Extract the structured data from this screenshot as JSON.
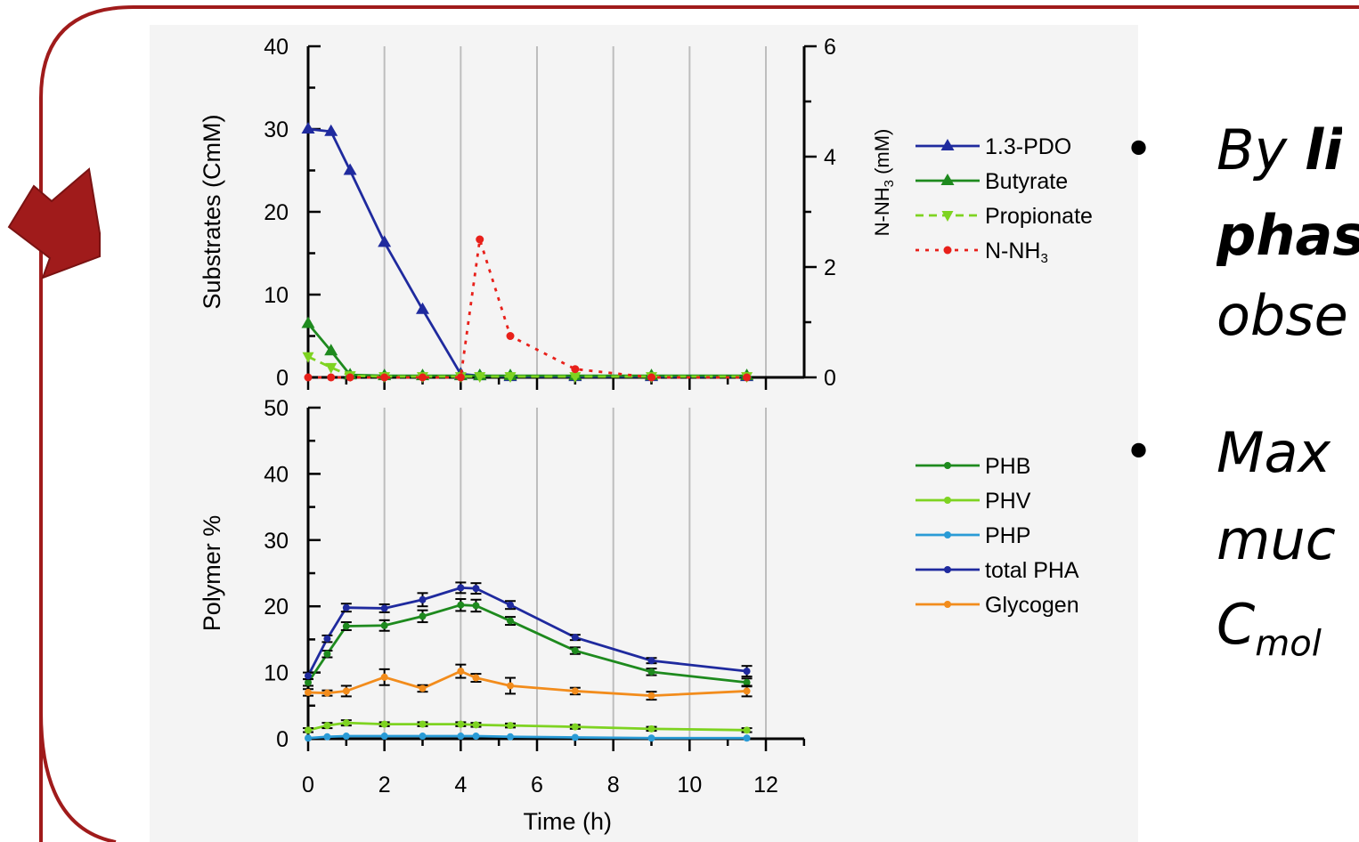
{
  "colors": {
    "frame": "#a01b1b",
    "arrow": "#a01b1b",
    "pdo": "#1f2a9e",
    "butyrate": "#1e8a1e",
    "propionate": "#7ed321",
    "nnh3": "#e8201a",
    "phb": "#1e8a1e",
    "phv": "#7ed321",
    "php": "#2a9bd6",
    "total_pha": "#1f2a9e",
    "glycogen": "#f28c1c"
  },
  "bullets": [
    {
      "parts": [
        {
          "text": "By ",
          "bold": false
        },
        {
          "text": "li",
          "bold": true
        }
      ]
    },
    {
      "parts": [
        {
          "text": "phas",
          "bold": true
        }
      ]
    },
    {
      "parts": [
        {
          "text": "obse",
          "bold": false
        }
      ]
    },
    {
      "parts": [
        {
          "text": "Max",
          "bold": false
        }
      ]
    },
    {
      "parts": [
        {
          "text": "muc",
          "bold": false
        }
      ]
    },
    {
      "parts": [
        {
          "text": "C",
          "bold": false
        }
      ],
      "sub": "mol"
    }
  ],
  "chart_data": [
    {
      "type": "line",
      "ylabel": "Substrates (CmM)",
      "y2label": "N-NH",
      "y2label_sub": "3",
      "y2label_suffix": " (mM)",
      "xlim": [
        0,
        12.5
      ],
      "ylim": [
        0,
        40
      ],
      "y2lim": [
        0,
        6
      ],
      "yticks": [
        0,
        10,
        20,
        30,
        40
      ],
      "y2ticks": [
        0,
        2,
        4,
        6
      ],
      "grid_x": true,
      "legend_position": "right",
      "series": [
        {
          "name": "1.3-PDO",
          "axis": "left",
          "marker": "triangle-up",
          "dash": "solid",
          "x": [
            0,
            0.6,
            1.1,
            2,
            3,
            4,
            4.5,
            5.3,
            7,
            9,
            11.5
          ],
          "y": [
            30,
            29.7,
            25,
            16.3,
            8.2,
            0.4,
            0.2,
            0.1,
            0.1,
            0.1,
            0.1
          ]
        },
        {
          "name": "Butyrate",
          "axis": "left",
          "marker": "triangle-up",
          "dash": "solid",
          "x": [
            0,
            0.6,
            1.1,
            2,
            3,
            4,
            4.5,
            5.3,
            7,
            9,
            11.5
          ],
          "y": [
            6.5,
            3.2,
            0.3,
            0.2,
            0.2,
            0.2,
            0.2,
            0.2,
            0.2,
            0.2,
            0.2
          ]
        },
        {
          "name": "Propionate",
          "axis": "left",
          "marker": "triangle-down",
          "dash": "dashed",
          "x": [
            0,
            0.6,
            1.1,
            2,
            3,
            4,
            4.5,
            5.3,
            7,
            9,
            11.5
          ],
          "y": [
            2.5,
            1.2,
            0.2,
            0.1,
            0.1,
            0.1,
            0.1,
            0.1,
            0.1,
            0.1,
            0.1
          ]
        },
        {
          "name": "N-NH",
          "name_sub": "3",
          "axis": "right",
          "marker": "circle",
          "dash": "dotted",
          "x": [
            0,
            0.6,
            1.1,
            2,
            3,
            4,
            4.5,
            5.3,
            7,
            9,
            11.5
          ],
          "y": [
            0,
            0,
            0,
            0,
            0,
            0,
            2.5,
            0.75,
            0.15,
            0,
            0
          ]
        }
      ]
    },
    {
      "type": "line",
      "ylabel": "Polymer %",
      "xlabel": "Time (h)",
      "xlim": [
        0,
        12.5
      ],
      "ylim": [
        0,
        50
      ],
      "xticks": [
        0,
        2,
        4,
        6,
        8,
        10,
        12
      ],
      "yticks": [
        0,
        10,
        20,
        30,
        40,
        50
      ],
      "grid_x": true,
      "legend_position": "right",
      "series": [
        {
          "name": "PHB",
          "x": [
            0,
            0.5,
            1,
            2,
            3,
            4,
            4.4,
            5.3,
            7,
            9,
            11.5
          ],
          "y": [
            8.5,
            12.8,
            17,
            17.1,
            18.5,
            20.2,
            20.1,
            17.8,
            13.3,
            10.1,
            8.5
          ],
          "err": [
            0.5,
            0.5,
            0.6,
            0.8,
            0.9,
            0.9,
            0.9,
            0.6,
            0.5,
            0.5,
            0.6
          ]
        },
        {
          "name": "PHV",
          "x": [
            0,
            0.5,
            1,
            2,
            3,
            4,
            4.4,
            5.3,
            7,
            9,
            11.5
          ],
          "y": [
            1.3,
            2,
            2.4,
            2.2,
            2.2,
            2.2,
            2.1,
            2,
            1.8,
            1.5,
            1.3
          ],
          "err": [
            0.3,
            0.4,
            0.4,
            0.3,
            0.3,
            0.3,
            0.3,
            0.3,
            0.3,
            0.3,
            0.3
          ]
        },
        {
          "name": "PHP",
          "x": [
            0,
            0.5,
            1,
            2,
            3,
            4,
            4.4,
            5.3,
            7,
            9,
            11.5
          ],
          "y": [
            0.1,
            0.3,
            0.4,
            0.4,
            0.4,
            0.4,
            0.4,
            0.3,
            0.2,
            0.1,
            0.1
          ],
          "err": [
            0,
            0,
            0,
            0,
            0,
            0,
            0,
            0,
            0,
            0,
            0
          ]
        },
        {
          "name": "total PHA",
          "x": [
            0,
            0.5,
            1,
            2,
            3,
            4,
            4.4,
            5.3,
            7,
            9,
            11.5
          ],
          "y": [
            9.5,
            15.1,
            19.8,
            19.7,
            21,
            22.8,
            22.7,
            20.2,
            15.3,
            11.8,
            10.2
          ],
          "err": [
            0.5,
            0.5,
            0.6,
            0.6,
            1,
            0.8,
            0.8,
            0.6,
            0.4,
            0.4,
            0.8
          ]
        },
        {
          "name": "Glycogen",
          "x": [
            0,
            0.5,
            1,
            2,
            3,
            4,
            4.4,
            5.3,
            7,
            9,
            11.5
          ],
          "y": [
            7,
            6.9,
            7.2,
            9.3,
            7.6,
            10.2,
            9.2,
            8,
            7.2,
            6.5,
            7.2
          ],
          "err": [
            0.5,
            0.4,
            0.8,
            1.2,
            0.5,
            1,
            0.6,
            1.2,
            0.5,
            0.6,
            0.8
          ]
        }
      ]
    }
  ]
}
